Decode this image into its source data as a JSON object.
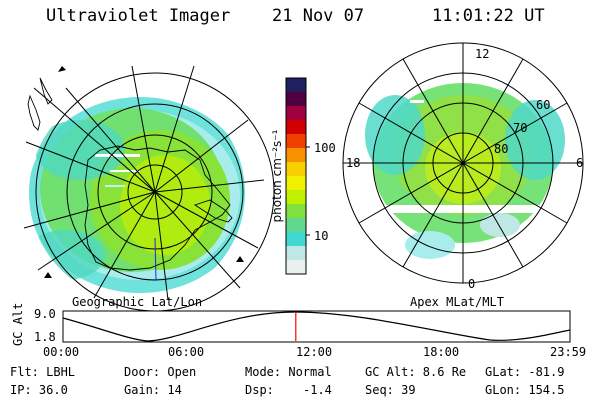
{
  "header": {
    "instrument": "Ultraviolet Imager",
    "date": "21 Nov 07",
    "time": "11:01:22 UT"
  },
  "left_panel": {
    "caption": "Geographic Lat/Lon"
  },
  "right_panel": {
    "caption": "Apex MLat/MLT",
    "mlt_labels": {
      "top": "12",
      "left": "18",
      "right": "6",
      "bottom": "0"
    },
    "lat_labels": [
      "60",
      "70",
      "80"
    ]
  },
  "colorbar": {
    "label": "photon cm⁻²s⁻¹",
    "tick_labels": [
      "100",
      "10"
    ],
    "scale": "log",
    "colors": [
      "#e8f0f0",
      "#bfe7e3",
      "#40d8d0",
      "#60d890",
      "#80e040",
      "#c0f000",
      "#f0f000",
      "#f8d000",
      "#f89000",
      "#f04000",
      "#d00000",
      "#a00040",
      "#500040",
      "#202060"
    ]
  },
  "timeline": {
    "y_label": "GC Alt",
    "y_ticks": [
      "9.0",
      "1.8"
    ],
    "x_ticks": [
      "00:00",
      "06:00",
      "12:00",
      "18:00",
      "23:59"
    ],
    "current_time_hours": 11.02,
    "marker_color": "#ff0000"
  },
  "footer": {
    "filter": "Flt: LBHL",
    "ip": "IP: 36.0",
    "door": "Door: Open",
    "gain": "Gain: 14",
    "mode": "Mode: Normal",
    "dsp_label": "Dsp:",
    "dsp_value": "-1.4",
    "gc_alt": "GC Alt: 8.6 Re",
    "seq": "Seq: 39",
    "glat": "GLat: -81.9",
    "glon": "GLon: 154.5"
  }
}
